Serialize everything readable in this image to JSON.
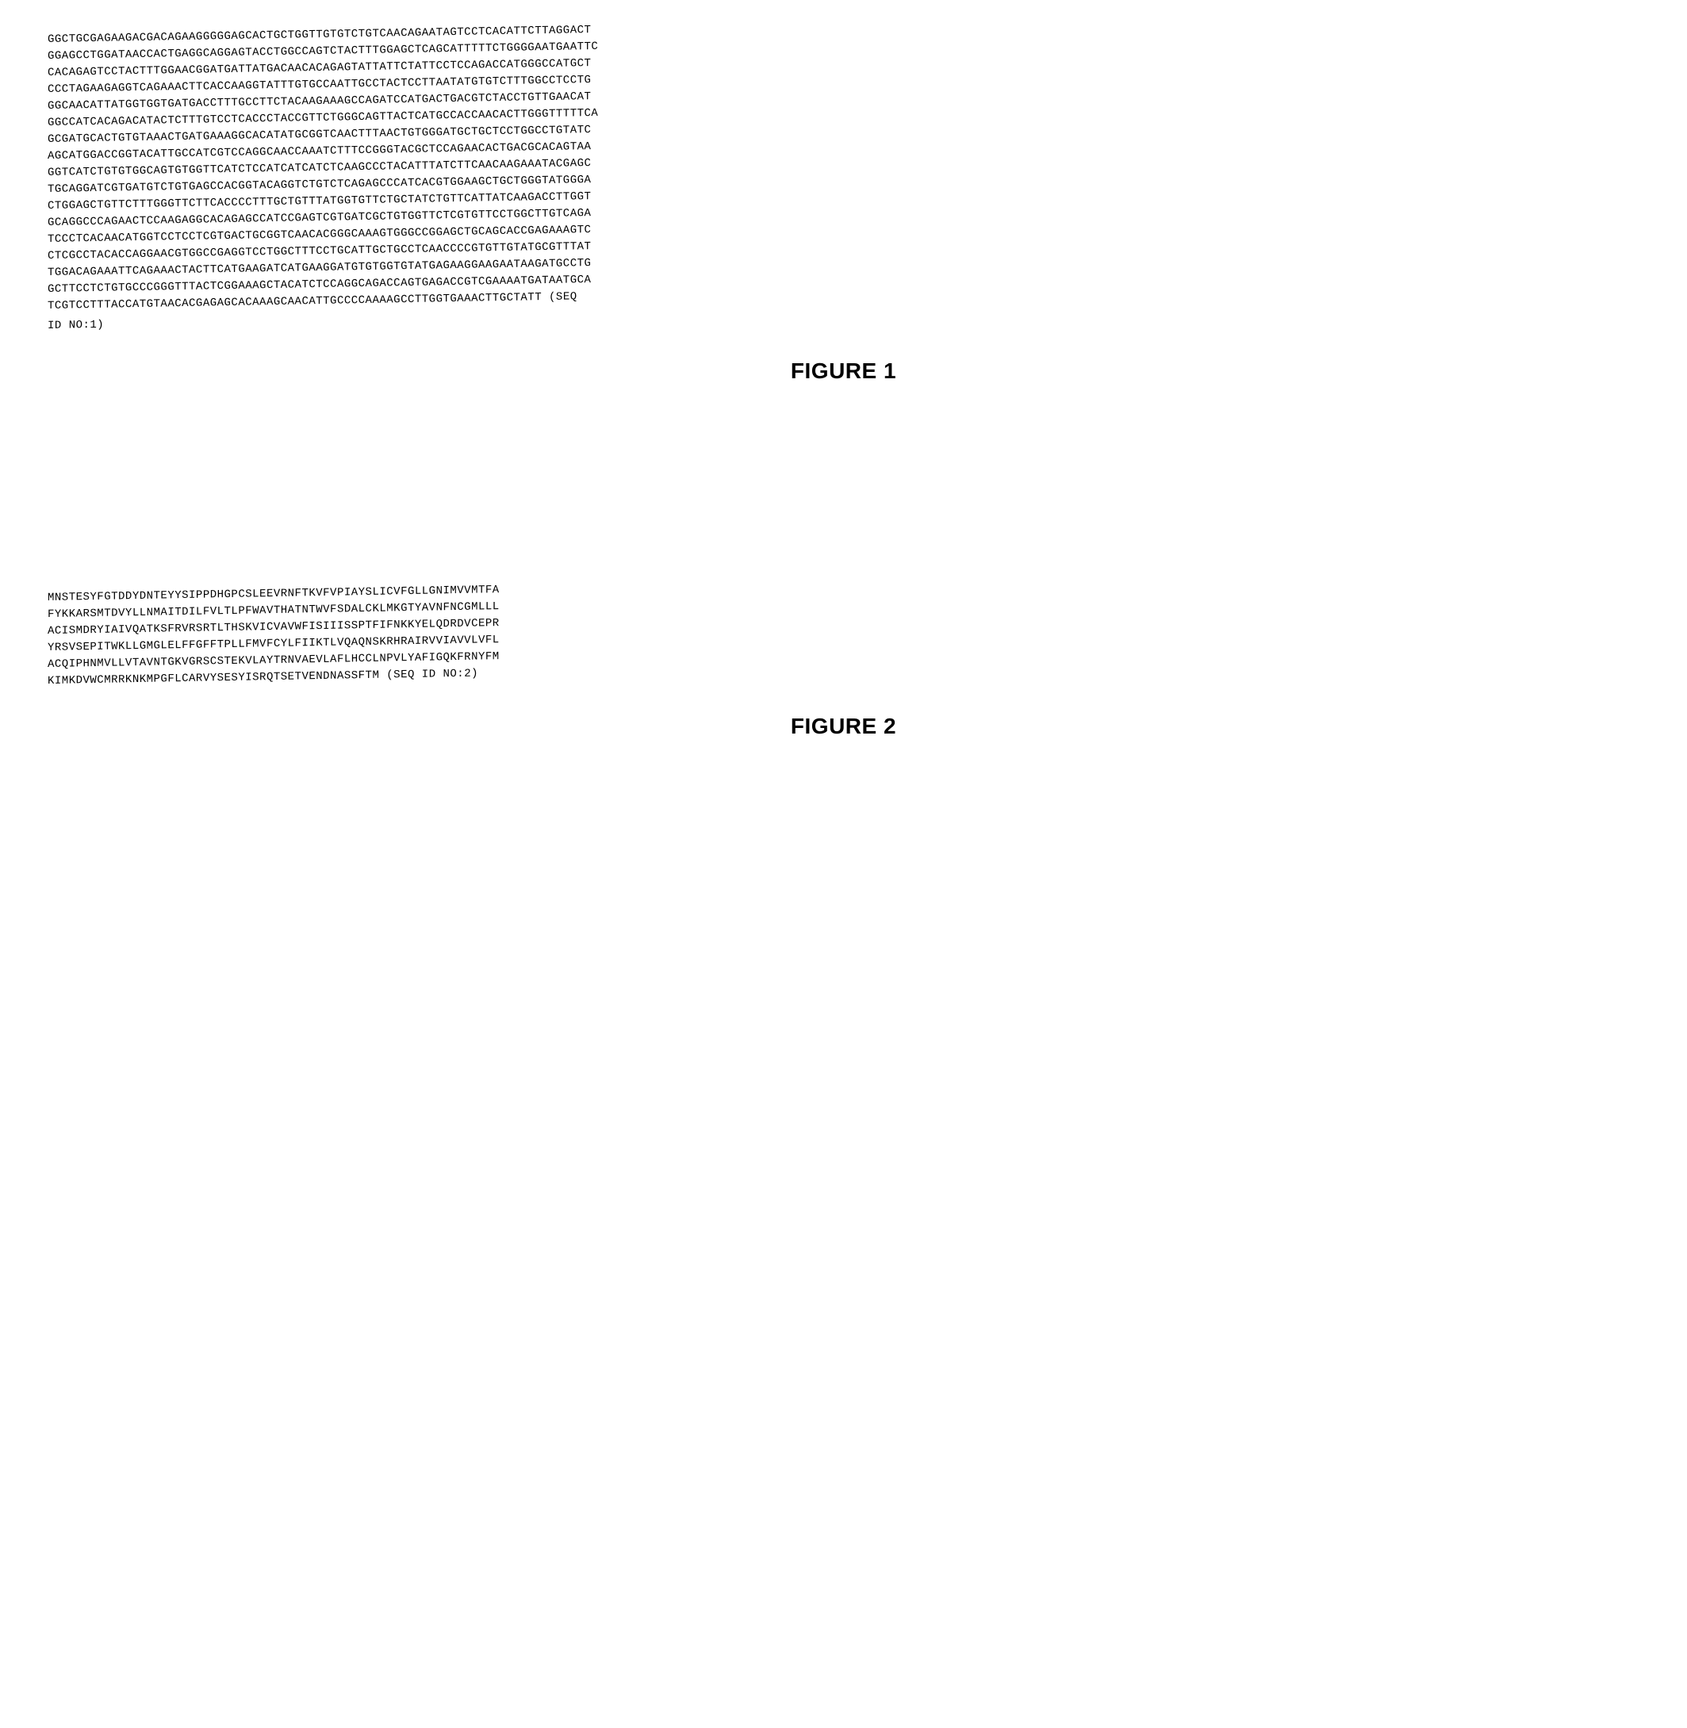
{
  "figure1": {
    "label": "FIGURE 1",
    "lines": [
      "GGCTGCGAGAAGACGACAGAAGGGGGAGCACTGCTGGTTGTGTCTGTCAACAGAATAGTCCTCACATTCTTAGGACT",
      "GGAGCCTGGATAACCACTGAGGCAGGAGTACCTGGCCAGTCTACTTTGGAGCTCAGCATTTTTCTGGGGAATGAATTC",
      "CACAGAGTCCTACTTTGGAACGGATGATTATGACAACACAGAGTATTATTCTATTCCTCCAGACCATGGGCCATGCT",
      "CCCTAGAAGAGGTCAGAAACTTCACCAAGGTATTTGTGCCAATTGCCTACTCCTTAATATGTGTCTTTGGCCTCCTG",
      "GGCAACATTATGGTGGTGATGACCTTTGCCTTCTACAAGAAAGCCAGATCCATGACTGACGTCTACCTGTTGAACAT",
      "GGCCATCACAGACATACTCTTTGTCCTCACCCTACCGTTCTGGGCAGTTACTCATGCCACCAACACTTGGGTTTTTCA",
      "GCGATGCACTGTGTAAACTGATGAAAGGCACATATGCGGTCAACTTTAACTGTGGGATGCTGCTCCTGGCCTGTATC",
      "AGCATGGACCGGTACATTGCCATCGTCCAGGCAACCAAATCTTTCCGGGTACGCTCCAGAACACTGACGCACAGTAA",
      "GGTCATCTGTGTGGCAGTGTGGTTCATCTCCATCATCATCTCAAGCCCTACATTTATCTTCAACAAGAAATACGAGC",
      "TGCAGGATCGTGATGTCTGTGAGCCACGGTACAGGTCTGTCTCAGAGCCCATCACGTGGAAGCTGCTGGGTATGGGA",
      "CTGGAGCTGTTCTTTGGGTTCTTCACCCCTTTGCTGTTTATGGTGTTCTGCTATCTGTTCATTATCAAGACCTTGGT",
      "GCAGGCCCAGAACTCCAAGAGGCACAGAGCCATCCGAGTCGTGATCGCTGTGGTTCTCGTGTTCCTGGCTTGTCAGA",
      "TCCCTCACAACATGGTCCTCCTCGTGACTGCGGTCAACACGGGCAAAGTGGGCCGGAGCTGCAGCACCGAGAAAGTC",
      "CTCGCCTACACCAGGAACGTGGCCGAGGTCCTGGCTTTCCTGCATTGCTGCCTCAACCCCGTGTTGTATGCGTTTAT",
      "TGGACAGAAATTCAGAAACTACTTCATGAAGATCATGAAGGATGTGTGGTGTATGAGAAGGAAGAATAAGATGCCTG",
      "GCTTCCTCTGTGCCCGGGTTTACTCGGAAAGCTACATCTCCAGGCAGACCAGTGAGACCGTCGAAAATGATAATGCA",
      "TCGTCCTTTACCATGTAACACGAGAGCACAAAGCAACATTGCCCCAAAAGCCTTGGTGAAACTTGCTATT"
    ],
    "seq_id_inline": "(SEQ",
    "seq_id_line2": "ID NO:1)"
  },
  "figure2": {
    "label": "FIGURE 2",
    "lines": [
      "MNSTESYFGTDDYDNTEYYSIPPDHGPCSLEEVRNFTKVFVPIAYSLICVFGLLGNIMVVMTFA",
      "FYKKARSMTDVYLLNMAITDILFVLTLPFWAVTHATNTWVFSDALCKLMKGTYAVNFNCGMLLL",
      "ACISMDRYIAIVQATKSFRVRSRTLTHSKVICVAVWFISIIISSPTFIFNKKYELQDRDVCEPR",
      "YRSVSEPITWKLLGMGLELFFGFFTPLLFMVFCYLFIIKTLVQAQNSKRHRAIRVVIAVVLVFL",
      "ACQIPHNMVLLVTAVNTGKVGRSCSTEKVLAYTRNVAEVLAFLHCCLNPVLYAFIGQKFRNYFM",
      "KIMKDVWCMRRKNKMPGFLCARVYSESYISRQTSETVENDNASSFTM"
    ],
    "seq_id_inline": "(SEQ ID NO:2)"
  },
  "styling": {
    "font_family": "Courier New",
    "font_size_pt": 14,
    "figure_label_font": "Arial",
    "figure_label_size_pt": 28,
    "figure_label_weight": "bold",
    "background_color": "#ffffff",
    "text_color": "#000000"
  }
}
